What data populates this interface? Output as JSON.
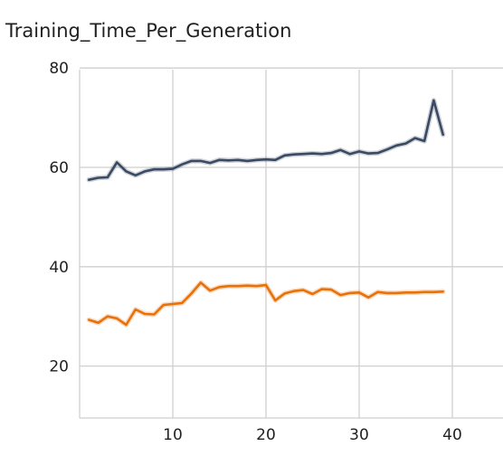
{
  "chart_data": {
    "type": "line",
    "title": "Training_Time_Per_Generation",
    "xlabel": "",
    "ylabel": "",
    "xlim": [
      0,
      45
    ],
    "ylim": [
      10,
      80
    ],
    "xticks": [
      10,
      20,
      30,
      40
    ],
    "yticks": [
      20,
      40,
      60,
      80
    ],
    "grid": true,
    "series": [
      {
        "color": "#3b4a63",
        "x": [
          1,
          2,
          3,
          4,
          5,
          6,
          7,
          8,
          9,
          10,
          11,
          12,
          13,
          14,
          15,
          16,
          17,
          18,
          19,
          20,
          21,
          22,
          23,
          24,
          25,
          26,
          27,
          28,
          29,
          30,
          31,
          32,
          33,
          34,
          35,
          36,
          37,
          38,
          39
        ],
        "values": [
          57.5,
          57.9,
          58.0,
          61.0,
          59.2,
          58.4,
          59.2,
          59.6,
          59.6,
          59.7,
          60.6,
          61.3,
          61.3,
          60.9,
          61.5,
          61.4,
          61.5,
          61.3,
          61.5,
          61.6,
          61.5,
          62.4,
          62.6,
          62.7,
          62.8,
          62.7,
          62.9,
          63.5,
          62.7,
          63.2,
          62.8,
          62.9,
          63.6,
          64.4,
          64.8,
          65.9,
          65.3,
          73.5,
          66.6
        ]
      },
      {
        "color": "#e8710a",
        "x": [
          1,
          2,
          3,
          4,
          5,
          6,
          7,
          8,
          9,
          10,
          11,
          12,
          13,
          14,
          15,
          16,
          17,
          18,
          19,
          20,
          21,
          22,
          23,
          24,
          25,
          26,
          27,
          28,
          29,
          30,
          31,
          32,
          33,
          34,
          35,
          36,
          37,
          38,
          39
        ],
        "values": [
          29.3,
          28.7,
          30.0,
          29.6,
          28.3,
          31.4,
          30.5,
          30.4,
          32.3,
          32.5,
          32.7,
          34.6,
          36.8,
          35.2,
          35.9,
          36.1,
          36.1,
          36.2,
          36.1,
          36.3,
          33.2,
          34.6,
          35.1,
          35.3,
          34.5,
          35.5,
          35.4,
          34.3,
          34.7,
          34.8,
          33.8,
          34.9,
          34.7,
          34.7,
          34.8,
          34.8,
          34.9,
          34.9,
          35.0
        ]
      }
    ]
  }
}
